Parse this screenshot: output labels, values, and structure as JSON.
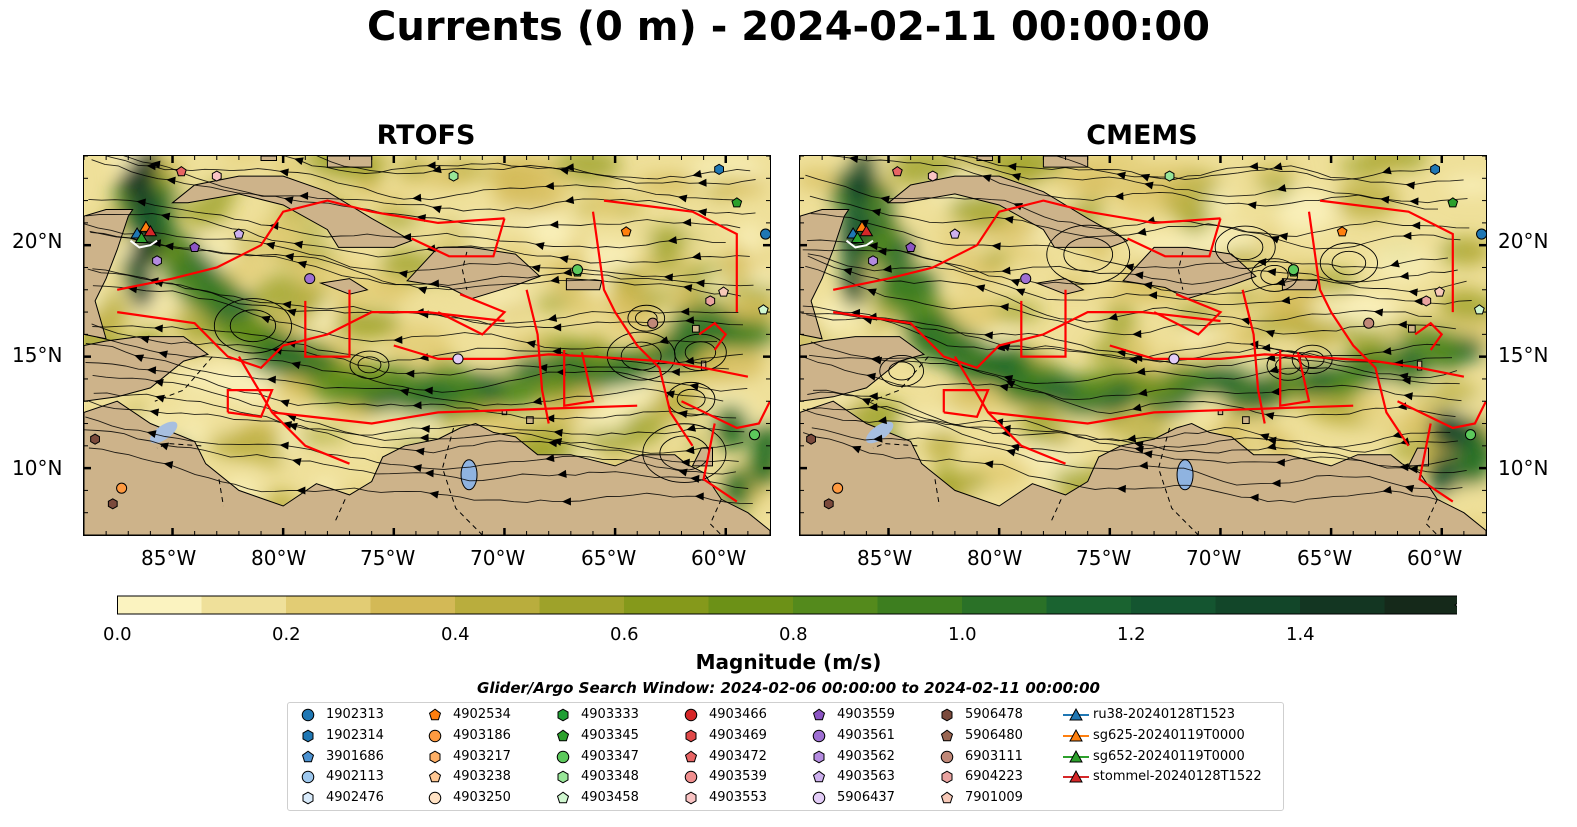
{
  "title": "Currents (0 m) - 2024-02-11 00:00:00",
  "panels": [
    {
      "name": "RTOFS"
    },
    {
      "name": "CMEMS"
    }
  ],
  "lat_labels": [
    "20°N",
    "15°N",
    "10°N"
  ],
  "lon_labels": [
    "85°W",
    "80°W",
    "75°W",
    "70°W",
    "65°W",
    "60°W"
  ],
  "colorbar": {
    "label": "Magnitude (m/s)",
    "tick_labels": [
      "0.0",
      "0.2",
      "0.4",
      "0.6",
      "0.8",
      "1.0",
      "1.2",
      "1.4"
    ],
    "colors": [
      "#fbf3c0",
      "#efe09a",
      "#e2cc74",
      "#d3b956",
      "#b9ad3d",
      "#9ea22a",
      "#85991b",
      "#6c9117",
      "#548a1c",
      "#3d7e1f",
      "#2a7127",
      "#1a6330",
      "#145530",
      "#124629",
      "#133622",
      "#15291a"
    ],
    "extend": "max"
  },
  "search_window": "Glider/Argo Search Window: 2024-02-06 00:00:00 to 2024-02-11 00:00:00",
  "land_color": "#cdb38a",
  "boundary_color": "#ff0000",
  "legend": {
    "columns": [
      [
        {
          "label": "1902313",
          "marker": "circle",
          "color": "#1f77b4"
        },
        {
          "label": "1902314",
          "marker": "hexagon",
          "color": "#1f77b4"
        },
        {
          "label": "3901686",
          "marker": "pentagon",
          "color": "#4c92d1"
        },
        {
          "label": "4902113",
          "marker": "circle",
          "color": "#9ec8ee"
        },
        {
          "label": "4902476",
          "marker": "hexagon",
          "color": "#d9ebfb"
        }
      ],
      [
        {
          "label": "4902534",
          "marker": "pentagon",
          "color": "#ff7f0e"
        },
        {
          "label": "4903186",
          "marker": "circle",
          "color": "#ff9a40"
        },
        {
          "label": "4903217",
          "marker": "hexagon",
          "color": "#ffb066"
        },
        {
          "label": "4903238",
          "marker": "pentagon",
          "color": "#ffc894"
        },
        {
          "label": "4903250",
          "marker": "circle",
          "color": "#ffe2c4"
        }
      ],
      [
        {
          "label": "4903333",
          "marker": "hexagon",
          "color": "#1f9e34"
        },
        {
          "label": "4903345",
          "marker": "pentagon",
          "color": "#2ca02c"
        },
        {
          "label": "4903347",
          "marker": "circle",
          "color": "#5cc95c"
        },
        {
          "label": "4903348",
          "marker": "hexagon",
          "color": "#98e698"
        },
        {
          "label": "4903458",
          "marker": "pentagon",
          "color": "#d0f7d0"
        }
      ],
      [
        {
          "label": "4903466",
          "marker": "circle",
          "color": "#d62728"
        },
        {
          "label": "4903469",
          "marker": "hexagon",
          "color": "#e04848"
        },
        {
          "label": "4903472",
          "marker": "pentagon",
          "color": "#e86464"
        },
        {
          "label": "4903539",
          "marker": "circle",
          "color": "#f08e8e"
        },
        {
          "label": "4903553",
          "marker": "hexagon",
          "color": "#f9c3c3"
        }
      ],
      [
        {
          "label": "4903559",
          "marker": "pentagon",
          "color": "#8c55c4"
        },
        {
          "label": "4903561",
          "marker": "circle",
          "color": "#9e6fd2"
        },
        {
          "label": "4903562",
          "marker": "hexagon",
          "color": "#b48be0"
        },
        {
          "label": "4903563",
          "marker": "pentagon",
          "color": "#cdb0ee"
        },
        {
          "label": "5906437",
          "marker": "circle",
          "color": "#e3cdf7"
        }
      ],
      [
        {
          "label": "5906478",
          "marker": "hexagon",
          "color": "#7b4a3c"
        },
        {
          "label": "5906480",
          "marker": "pentagon",
          "color": "#9a6652"
        },
        {
          "label": "6903111",
          "marker": "circle",
          "color": "#c08878"
        },
        {
          "label": "6904223",
          "marker": "hexagon",
          "color": "#e9a3a0"
        },
        {
          "label": "7901009",
          "marker": "pentagon",
          "color": "#f7c9b8"
        }
      ],
      [
        {
          "label": "ru38-20240128T1523",
          "marker": "triangle-line",
          "color": "#1f77b4"
        },
        {
          "label": "sg625-20240119T0000",
          "marker": "triangle-line",
          "color": "#ff7f0e"
        },
        {
          "label": "sg652-20240119T0000",
          "marker": "triangle-line",
          "color": "#2ca02c"
        },
        {
          "label": "stommel-20240128T1522",
          "marker": "triangle-line",
          "color": "#d62728"
        }
      ]
    ]
  }
}
